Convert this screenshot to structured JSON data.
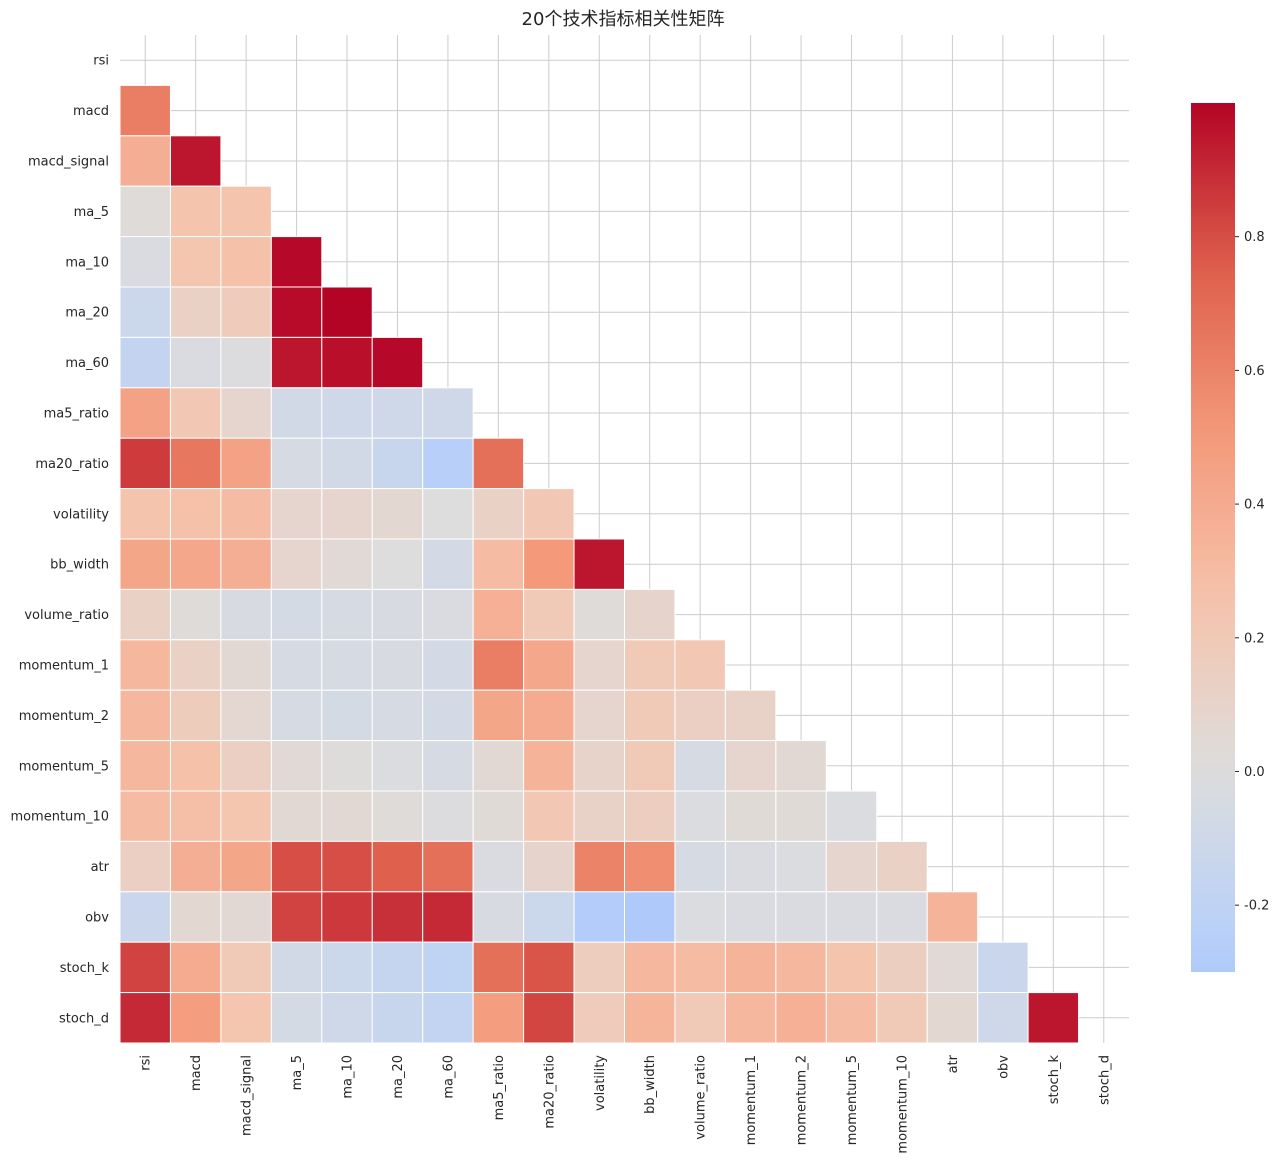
{
  "chart_data": {
    "type": "heatmap",
    "title": "20个技术指标相关性矩阵",
    "variables": [
      "rsi",
      "macd",
      "macd_signal",
      "ma_5",
      "ma_10",
      "ma_20",
      "ma_60",
      "ma5_ratio",
      "ma20_ratio",
      "volatility",
      "bb_width",
      "volume_ratio",
      "momentum_1",
      "momentum_2",
      "momentum_5",
      "momentum_10",
      "atr",
      "obv",
      "stoch_k",
      "stoch_d"
    ],
    "mask": "upper-triangle-and-diagonal",
    "colormap": "coolwarm",
    "vmin": -0.3,
    "vmax": 1.0,
    "colorbar_ticks": [
      {
        "value": 0.8,
        "label": "0.8"
      },
      {
        "value": 0.6,
        "label": "0.6"
      },
      {
        "value": 0.4,
        "label": "0.4"
      },
      {
        "value": 0.2,
        "label": "0.2"
      },
      {
        "value": 0.0,
        "label": "0.0"
      },
      {
        "value": -0.2,
        "label": "-0.2"
      }
    ],
    "lower_triangle_values": [
      [],
      [
        0.62
      ],
      [
        0.38,
        0.95
      ],
      [
        0.02,
        0.25,
        0.25
      ],
      [
        -0.03,
        0.24,
        0.27,
        0.99
      ],
      [
        -0.12,
        0.12,
        0.18,
        0.98,
        1.0
      ],
      [
        -0.17,
        -0.03,
        -0.01,
        0.95,
        0.97,
        0.99
      ],
      [
        0.45,
        0.22,
        0.08,
        -0.08,
        -0.1,
        -0.1,
        -0.1
      ],
      [
        0.85,
        0.65,
        0.45,
        -0.05,
        -0.08,
        -0.14,
        -0.25,
        0.68
      ],
      [
        0.25,
        0.27,
        0.3,
        0.08,
        0.08,
        0.06,
        0.0,
        0.12,
        0.22
      ],
      [
        0.43,
        0.42,
        0.38,
        0.08,
        0.04,
        0.0,
        -0.07,
        0.3,
        0.5,
        0.95
      ],
      [
        0.12,
        0.02,
        -0.04,
        -0.06,
        -0.05,
        -0.04,
        -0.03,
        0.37,
        0.2,
        0.02,
        0.09
      ],
      [
        0.32,
        0.12,
        0.05,
        -0.05,
        -0.05,
        -0.04,
        -0.07,
        0.62,
        0.42,
        0.08,
        0.2,
        0.22
      ],
      [
        0.33,
        0.17,
        0.07,
        -0.05,
        -0.06,
        -0.05,
        -0.07,
        0.43,
        0.4,
        0.08,
        0.2,
        0.14,
        0.11
      ],
      [
        0.33,
        0.27,
        0.14,
        0.04,
        0.01,
        -0.02,
        -0.05,
        0.05,
        0.35,
        0.1,
        0.2,
        -0.05,
        0.08,
        0.05
      ],
      [
        0.3,
        0.28,
        0.24,
        0.05,
        0.05,
        0.02,
        -0.01,
        0.03,
        0.22,
        0.11,
        0.15,
        -0.02,
        0.03,
        0.03,
        -0.02
      ],
      [
        0.14,
        0.38,
        0.43,
        0.8,
        0.8,
        0.75,
        0.68,
        -0.03,
        0.09,
        0.6,
        0.55,
        -0.05,
        -0.03,
        -0.02,
        0.08,
        0.12
      ],
      [
        -0.13,
        0.06,
        0.05,
        0.83,
        0.86,
        0.88,
        0.9,
        -0.04,
        -0.12,
        -0.28,
        -0.3,
        -0.02,
        -0.03,
        -0.03,
        -0.03,
        -0.03,
        0.35
      ],
      [
        0.83,
        0.4,
        0.2,
        -0.08,
        -0.12,
        -0.16,
        -0.2,
        0.68,
        0.78,
        0.16,
        0.32,
        0.3,
        0.35,
        0.33,
        0.25,
        0.15,
        0.04,
        -0.13
      ],
      [
        0.9,
        0.48,
        0.24,
        -0.06,
        -0.1,
        -0.14,
        -0.18,
        0.48,
        0.82,
        0.18,
        0.34,
        0.2,
        0.32,
        0.37,
        0.3,
        0.2,
        0.06,
        -0.1,
        0.95
      ]
    ]
  }
}
